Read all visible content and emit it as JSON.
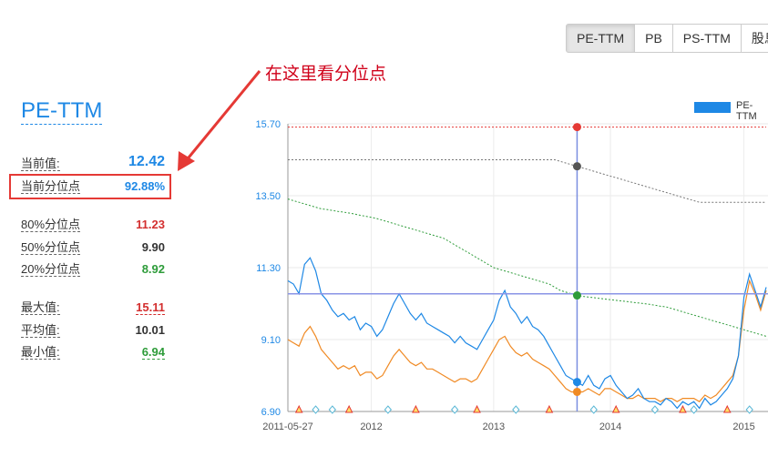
{
  "tabs": [
    {
      "label": "PE-TTM",
      "active": true
    },
    {
      "label": "PB",
      "active": false
    },
    {
      "label": "PS-TTM",
      "active": false
    },
    {
      "label": "股息",
      "active": false
    }
  ],
  "annotation": {
    "text": "在这里看分位点",
    "color": "#d0021b"
  },
  "metric": {
    "title": "PE-TTM",
    "current_label": "当前值:",
    "current_value": "12.42",
    "pct_label": "当前分位点",
    "pct_value": "92.88%",
    "p80_label": "80%分位点",
    "p80_value": "11.23",
    "p50_label": "50%分位点",
    "p50_value": "9.90",
    "p20_label": "20%分位点",
    "p20_value": "8.92",
    "max_label": "最大值:",
    "max_value": "15.11",
    "avg_label": "平均值:",
    "avg_value": "10.01",
    "min_label": "最小值:",
    "min_value": "6.94"
  },
  "chart_data": {
    "type": "line",
    "ylim": [
      6.9,
      15.7
    ],
    "y_ticks": [
      "15.70",
      "13.50",
      "11.30",
      "9.10",
      "6.90"
    ],
    "x_ticks": [
      "2011-05-27",
      "2012",
      "2013",
      "2014",
      "2015"
    ],
    "grid": true,
    "legend": "top-right",
    "series": [
      {
        "name": "PE-TTM",
        "color": "#1e88e5"
      }
    ],
    "blue_values": [
      10.9,
      10.8,
      10.5,
      11.4,
      11.6,
      11.2,
      10.5,
      10.3,
      10.0,
      9.8,
      9.9,
      9.7,
      9.8,
      9.4,
      9.6,
      9.5,
      9.2,
      9.4,
      9.8,
      10.2,
      10.5,
      10.2,
      9.9,
      9.7,
      9.9,
      9.6,
      9.5,
      9.4,
      9.3,
      9.2,
      9.0,
      9.2,
      9.0,
      8.9,
      8.8,
      9.1,
      9.4,
      9.7,
      10.3,
      10.6,
      10.1,
      9.9,
      9.6,
      9.8,
      9.5,
      9.4,
      9.2,
      8.9,
      8.6,
      8.3,
      8.0,
      7.9,
      7.8,
      7.7,
      8.0,
      7.7,
      7.6,
      7.9,
      8.0,
      7.7,
      7.5,
      7.3,
      7.4,
      7.6,
      7.3,
      7.2,
      7.2,
      7.1,
      7.3,
      7.2,
      7.0,
      7.2,
      7.1,
      7.2,
      7.0,
      7.3,
      7.1,
      7.2,
      7.4,
      7.6,
      7.9,
      8.6,
      10.4,
      11.1,
      10.6,
      10.1,
      10.7
    ],
    "orange_values": [
      9.1,
      9.0,
      8.9,
      9.3,
      9.5,
      9.2,
      8.8,
      8.6,
      8.4,
      8.2,
      8.3,
      8.2,
      8.3,
      8.0,
      8.1,
      8.1,
      7.9,
      8.0,
      8.3,
      8.6,
      8.8,
      8.6,
      8.4,
      8.3,
      8.4,
      8.2,
      8.2,
      8.1,
      8.0,
      7.9,
      7.8,
      7.9,
      7.9,
      7.8,
      7.9,
      8.2,
      8.5,
      8.8,
      9.1,
      9.2,
      8.9,
      8.7,
      8.6,
      8.7,
      8.5,
      8.4,
      8.3,
      8.2,
      8.0,
      7.8,
      7.6,
      7.5,
      7.5,
      7.5,
      7.6,
      7.5,
      7.4,
      7.6,
      7.6,
      7.5,
      7.4,
      7.3,
      7.3,
      7.4,
      7.3,
      7.3,
      7.3,
      7.2,
      7.3,
      7.3,
      7.2,
      7.3,
      7.3,
      7.3,
      7.2,
      7.4,
      7.3,
      7.4,
      7.6,
      7.8,
      8.0,
      8.6,
      10.0,
      10.9,
      10.5,
      10.0,
      10.6
    ],
    "p80_values": [
      15.6,
      15.6,
      15.6,
      15.6,
      15.6,
      15.6,
      15.6,
      15.6,
      15.6,
      15.6,
      15.6,
      15.6,
      15.6,
      15.6,
      15.6,
      15.6,
      15.6,
      15.6,
      15.6,
      15.6,
      15.6,
      15.6,
      15.6,
      15.6,
      15.6,
      15.6,
      15.6,
      15.6,
      15.6,
      15.6,
      15.6,
      15.6,
      15.6,
      15.6,
      15.6,
      15.6,
      15.6,
      15.6,
      15.6,
      15.6,
      15.6,
      15.6,
      15.6,
      15.6,
      15.6,
      15.6,
      15.6,
      15.6,
      15.6,
      15.6,
      15.6,
      15.6,
      15.6,
      15.6,
      15.6,
      15.6,
      15.6,
      15.6,
      15.6,
      15.6,
      15.6,
      15.6,
      15.6,
      15.6,
      15.6,
      15.6,
      15.6,
      15.6,
      15.6,
      15.6,
      15.6,
      15.6,
      15.6,
      15.6,
      15.6,
      15.6,
      15.6,
      15.6,
      15.6,
      15.6,
      15.6,
      15.6,
      15.6,
      15.6,
      15.6,
      15.6,
      15.6
    ],
    "p50_values": [
      14.6,
      14.6,
      14.6,
      14.6,
      14.6,
      14.6,
      14.6,
      14.6,
      14.6,
      14.6,
      14.6,
      14.6,
      14.6,
      14.6,
      14.6,
      14.6,
      14.6,
      14.6,
      14.6,
      14.6,
      14.6,
      14.6,
      14.6,
      14.6,
      14.6,
      14.6,
      14.6,
      14.6,
      14.6,
      14.6,
      14.6,
      14.6,
      14.6,
      14.6,
      14.6,
      14.6,
      14.6,
      14.6,
      14.6,
      14.6,
      14.6,
      14.6,
      14.6,
      14.6,
      14.6,
      14.6,
      14.6,
      14.6,
      14.6,
      14.55,
      14.5,
      14.45,
      14.4,
      14.35,
      14.3,
      14.25,
      14.2,
      14.15,
      14.1,
      14.05,
      14.0,
      13.95,
      13.9,
      13.85,
      13.8,
      13.75,
      13.7,
      13.65,
      13.6,
      13.55,
      13.5,
      13.45,
      13.4,
      13.35,
      13.3,
      13.3,
      13.3,
      13.3,
      13.3,
      13.3,
      13.3,
      13.3,
      13.3,
      13.3,
      13.3,
      13.3,
      13.3
    ],
    "p20_values": [
      13.4,
      13.35,
      13.3,
      13.25,
      13.2,
      13.15,
      13.1,
      13.08,
      13.05,
      13.02,
      13.0,
      12.97,
      12.94,
      12.9,
      12.87,
      12.84,
      12.8,
      12.75,
      12.7,
      12.65,
      12.6,
      12.55,
      12.5,
      12.45,
      12.4,
      12.35,
      12.3,
      12.25,
      12.2,
      12.1,
      12.0,
      11.9,
      11.8,
      11.7,
      11.6,
      11.5,
      11.4,
      11.3,
      11.25,
      11.2,
      11.15,
      11.1,
      11.05,
      11.0,
      10.95,
      10.9,
      10.85,
      10.8,
      10.7,
      10.6,
      10.55,
      10.5,
      10.45,
      10.42,
      10.4,
      10.38,
      10.36,
      10.34,
      10.32,
      10.3,
      10.28,
      10.26,
      10.24,
      10.22,
      10.2,
      10.18,
      10.15,
      10.12,
      10.1,
      10.05,
      10.0,
      9.95,
      9.9,
      9.85,
      9.8,
      9.75,
      9.7,
      9.65,
      9.6,
      9.55,
      9.5,
      9.45,
      9.4,
      9.35,
      9.3,
      9.25,
      9.2
    ],
    "crosshair": {
      "x_index": 52,
      "y_value": 10.5
    },
    "markers": {
      "triangle_indices": [
        2,
        11,
        23,
        34,
        47,
        59,
        71,
        79
      ],
      "diamond_indices": [
        5,
        8,
        18,
        30,
        41,
        55,
        66,
        73,
        83
      ]
    }
  }
}
